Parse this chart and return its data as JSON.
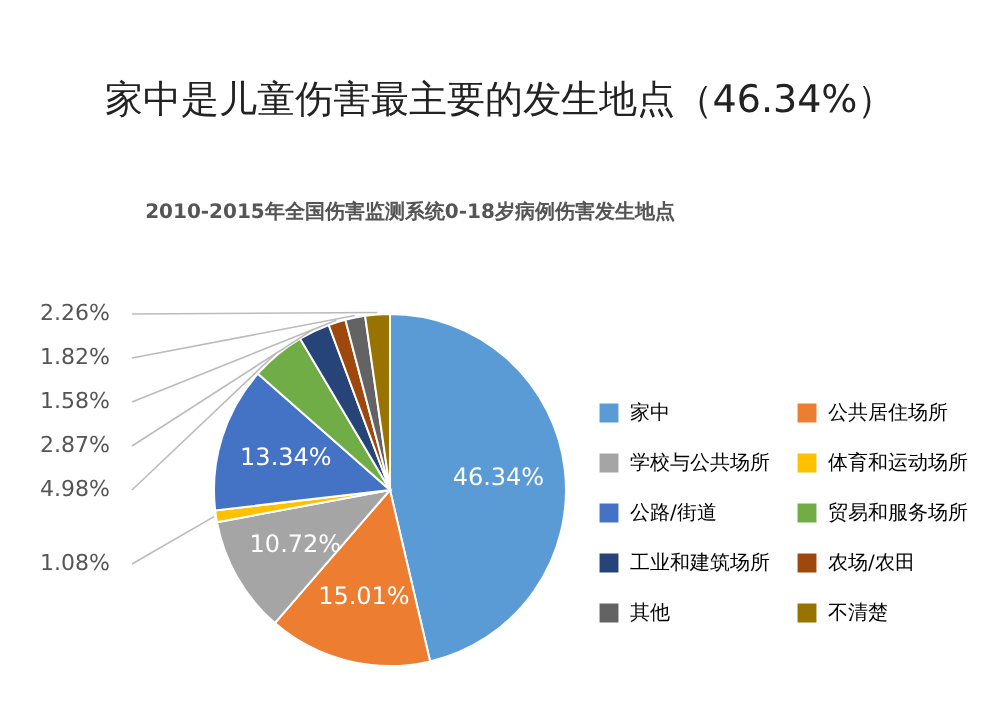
{
  "chart_data": {
    "type": "pie",
    "title": "家中是儿童伤害最主要的发生地点（46.34%）",
    "subtitle": "2010-2015年全国伤害监测系统0-18岁病例伤害发生地点",
    "categories": [
      "家中",
      "公共居住场所",
      "学校与公共场所",
      "体育和运动场所",
      "公路/街道",
      "贸易和服务场所",
      "工业和建筑场所",
      "农场/农田",
      "其他",
      "不清楚"
    ],
    "values": [
      46.34,
      15.01,
      10.72,
      1.08,
      13.34,
      4.98,
      2.87,
      1.58,
      1.82,
      2.26
    ],
    "colors": [
      "#5b9bd5",
      "#ed7d31",
      "#a5a5a5",
      "#ffc000",
      "#4472c4",
      "#70ad47",
      "#264478",
      "#9e480e",
      "#636363",
      "#997300"
    ],
    "value_labels": [
      "46.34%",
      "15.01%",
      "10.72%",
      "1.08%",
      "13.34%",
      "4.98%",
      "2.87%",
      "1.58%",
      "1.82%",
      "2.26%"
    ],
    "legend": "right"
  }
}
